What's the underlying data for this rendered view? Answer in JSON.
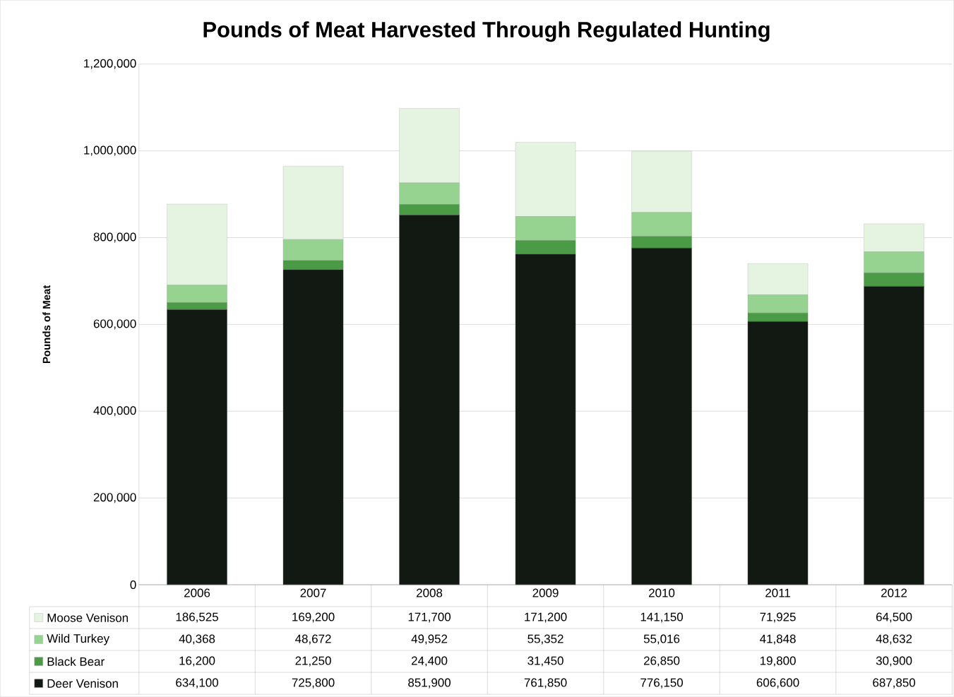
{
  "chart_data": {
    "type": "bar",
    "title": "Pounds of Meat Harvested Through Regulated Hunting",
    "ylabel": "Pounds of Meat",
    "stacked": true,
    "grid": "y",
    "legend": "bottom",
    "categories": [
      "2006",
      "2007",
      "2008",
      "2009",
      "2010",
      "2011",
      "2012"
    ],
    "ylim": [
      0,
      1200000
    ],
    "yticks": [
      0,
      {
        "value": 200000,
        "label": "200,000"
      },
      {
        "value": 400000,
        "label": "400,000"
      },
      {
        "value": 600000,
        "label": "600,000"
      },
      {
        "value": 800000,
        "label": "800,000"
      },
      {
        "value": 1000000,
        "label": "1,000,000"
      },
      {
        "value": 1200000,
        "label": "1,200,000"
      }
    ],
    "series": [
      {
        "name": "Deer Venison",
        "color": "#121912",
        "values": [
          634100,
          725800,
          851900,
          761850,
          776150,
          606600,
          687850
        ],
        "value_labels": [
          "634,100",
          "725,800",
          "851,900",
          "761,850",
          "776,150",
          "606,600",
          "687,850"
        ]
      },
      {
        "name": "Black Bear",
        "color": "#4a9a46",
        "values": [
          16200,
          21250,
          24400,
          31450,
          26850,
          19800,
          30900
        ],
        "value_labels": [
          "16,200",
          "21,250",
          "24,400",
          "31,450",
          "26,850",
          "19,800",
          "30,900"
        ]
      },
      {
        "name": "Wild Turkey",
        "color": "#96d290",
        "values": [
          40368,
          48672,
          49952,
          55352,
          55016,
          41848,
          48632
        ],
        "value_labels": [
          "40,368",
          "48,672",
          "49,952",
          "55,352",
          "55,016",
          "41,848",
          "48,632"
        ]
      },
      {
        "name": "Moose Venison",
        "color": "#e4f4e1",
        "values": [
          186525,
          169200,
          171700,
          171200,
          141150,
          71925,
          64500
        ],
        "value_labels": [
          "186,525",
          "169,200",
          "171,700",
          "171,200",
          "141,150",
          "71,925",
          "64,500"
        ]
      }
    ]
  }
}
